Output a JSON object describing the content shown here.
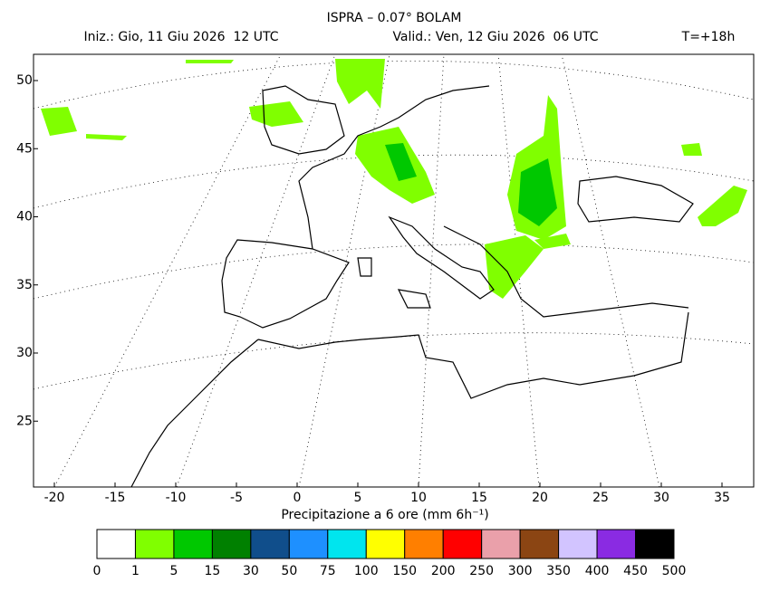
{
  "header": {
    "title": "ISPRA – 0.07° BOLAM",
    "init": "Iniz.: Gio, 11 Giu 2026  12 UTC",
    "valid": "Valid.: Ven, 12 Giu 2026  06 UTC",
    "lead": "T=+18h"
  },
  "map": {
    "lon_ticks": [
      -20,
      -15,
      -10,
      -5,
      0,
      5,
      10,
      15,
      20,
      25,
      30,
      35
    ],
    "lat_ticks": [
      25,
      30,
      35,
      40,
      45,
      50
    ]
  },
  "colorbar": {
    "title": "Precipitazione a 6 ore (mm 6h⁻¹)",
    "levels": [
      0,
      1,
      5,
      15,
      30,
      50,
      75,
      100,
      150,
      200,
      250,
      300,
      350,
      400,
      450,
      500
    ],
    "colors": [
      "#ffffff",
      "#80ff00",
      "#00c800",
      "#008000",
      "#104e8b",
      "#1e90ff",
      "#00e5ee",
      "#ffff00",
      "#ff7f00",
      "#ff0000",
      "#eaa0aa",
      "#8b4513",
      "#d2c4ff",
      "#8a2be2",
      "#000000"
    ]
  }
}
